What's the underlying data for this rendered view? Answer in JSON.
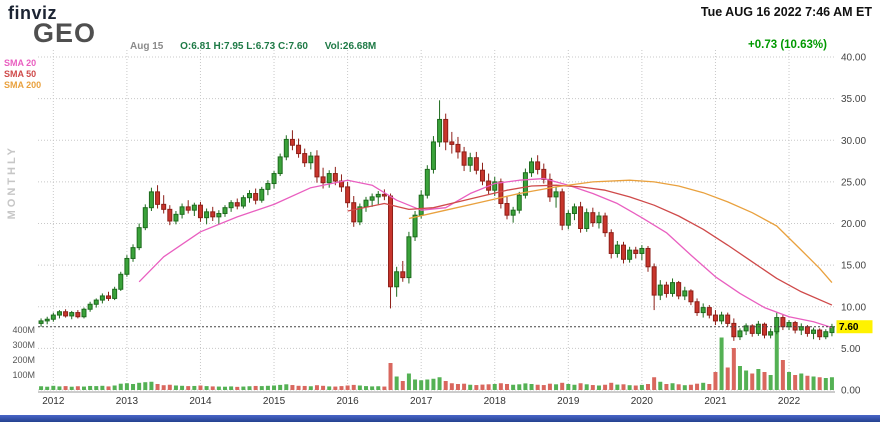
{
  "header": {
    "logo": "finviz",
    "datetime": "Tue AUG 16 2022 7:46 AM ET",
    "ticker": "GEO",
    "date_label": "Aug 15",
    "ohlc_line": "O:6.81  H:7.95  L:6.73  C:7.60",
    "volume_line": "Vol:26.68M",
    "change": "+0.73 (10.63%)"
  },
  "legend": {
    "sma20": "SMA 20",
    "sma50": "SMA 50",
    "sma200": "SMA 200"
  },
  "side_label": "MONTHLY",
  "colors": {
    "up": "#3aa23a",
    "up_border": "#1d6b1d",
    "down": "#c8352c",
    "down_border": "#8e1f18",
    "vol_up": "#54b154",
    "vol_down": "#d9675e",
    "sma20": "#e95fc0",
    "sma50": "#cf4a4a",
    "sma200": "#e9a13e",
    "grid": "#c8c8c8",
    "axis_text": "#444444",
    "change": "#009900",
    "quote": "#1e7a46",
    "label_bg": "#fff200",
    "label_text": "#000000"
  },
  "chart_data": {
    "type": "candlestick+volume",
    "title": "GEO monthly price chart",
    "timeframe": "monthly",
    "start": "2011-11",
    "ylim": [
      0,
      40
    ],
    "last_price": 7.6,
    "last_price_label": "7.60",
    "y_ticks": [
      [
        40,
        "40.00"
      ],
      [
        35,
        "35.00"
      ],
      [
        30,
        "30.00"
      ],
      [
        25,
        "25.00"
      ],
      [
        20,
        "20.00"
      ],
      [
        15,
        "15.00"
      ],
      [
        10,
        "10.00"
      ],
      [
        5,
        "5.00"
      ],
      [
        0,
        "0.00"
      ]
    ],
    "vol_ticks": [
      [
        400,
        "400M"
      ],
      [
        300,
        "300M"
      ],
      [
        200,
        "200M"
      ],
      [
        100,
        "100M"
      ]
    ],
    "year_ticks": [
      [
        2,
        "2012"
      ],
      [
        14,
        "2013"
      ],
      [
        26,
        "2014"
      ],
      [
        38,
        "2015"
      ],
      [
        50,
        "2016"
      ],
      [
        62,
        "2017"
      ],
      [
        74,
        "2018"
      ],
      [
        86,
        "2019"
      ],
      [
        98,
        "2020"
      ],
      [
        110,
        "2021"
      ],
      [
        122,
        "2022"
      ]
    ],
    "ohlcv": [
      [
        8.0,
        8.6,
        7.6,
        8.3,
        25
      ],
      [
        8.3,
        8.8,
        7.9,
        8.5,
        22
      ],
      [
        8.5,
        9.3,
        8.2,
        9.0,
        28
      ],
      [
        9.0,
        9.6,
        8.6,
        9.4,
        24
      ],
      [
        9.4,
        9.7,
        8.7,
        8.9,
        26
      ],
      [
        8.9,
        9.5,
        8.5,
        9.3,
        22
      ],
      [
        9.3,
        9.6,
        8.6,
        8.8,
        25
      ],
      [
        8.8,
        9.9,
        8.6,
        9.7,
        23
      ],
      [
        9.7,
        10.6,
        9.4,
        10.3,
        27
      ],
      [
        10.3,
        11.0,
        9.9,
        10.8,
        26
      ],
      [
        10.8,
        11.6,
        10.4,
        11.3,
        28
      ],
      [
        11.3,
        11.8,
        10.7,
        11.0,
        24
      ],
      [
        11.0,
        12.4,
        10.8,
        12.1,
        30
      ],
      [
        12.1,
        14.2,
        11.9,
        13.9,
        42
      ],
      [
        13.9,
        16.2,
        13.6,
        15.8,
        45
      ],
      [
        15.8,
        17.5,
        15.4,
        17.1,
        40
      ],
      [
        17.1,
        20.0,
        16.8,
        19.5,
        48
      ],
      [
        19.5,
        22.3,
        19.2,
        21.9,
        52
      ],
      [
        21.9,
        24.3,
        21.5,
        23.8,
        55
      ],
      [
        23.8,
        24.6,
        21.8,
        22.3,
        40
      ],
      [
        22.3,
        23.4,
        21.2,
        21.7,
        32
      ],
      [
        21.7,
        22.2,
        19.8,
        20.3,
        35
      ],
      [
        20.3,
        21.5,
        19.9,
        21.1,
        30
      ],
      [
        21.1,
        22.4,
        20.6,
        22.0,
        28
      ],
      [
        22.0,
        22.8,
        21.2,
        21.6,
        26
      ],
      [
        21.6,
        22.5,
        20.9,
        22.2,
        27
      ],
      [
        22.2,
        22.6,
        20.2,
        20.7,
        30
      ],
      [
        20.7,
        21.8,
        19.9,
        21.4,
        26
      ],
      [
        21.4,
        22.0,
        20.3,
        20.8,
        24
      ],
      [
        20.8,
        21.6,
        19.9,
        21.2,
        23
      ],
      [
        21.2,
        22.2,
        20.8,
        21.9,
        22
      ],
      [
        21.9,
        22.8,
        21.4,
        22.5,
        24
      ],
      [
        22.5,
        23.0,
        21.7,
        22.1,
        21
      ],
      [
        22.1,
        23.4,
        21.8,
        23.1,
        23
      ],
      [
        23.1,
        24.0,
        22.5,
        23.6,
        25
      ],
      [
        23.6,
        24.2,
        22.3,
        22.8,
        27
      ],
      [
        22.8,
        24.4,
        22.5,
        24.1,
        26
      ],
      [
        24.1,
        25.2,
        23.4,
        24.8,
        28
      ],
      [
        24.8,
        26.3,
        24.2,
        26.0,
        30
      ],
      [
        26.0,
        28.4,
        25.7,
        28.0,
        34
      ],
      [
        28.0,
        30.6,
        27.6,
        30.1,
        38
      ],
      [
        30.1,
        31.2,
        28.8,
        29.4,
        33
      ],
      [
        29.4,
        30.2,
        27.9,
        28.4,
        28
      ],
      [
        28.4,
        29.0,
        26.8,
        27.3,
        27
      ],
      [
        27.3,
        28.6,
        26.5,
        28.1,
        25
      ],
      [
        28.1,
        28.8,
        24.9,
        25.6,
        32
      ],
      [
        25.6,
        26.7,
        24.2,
        24.9,
        28
      ],
      [
        24.9,
        26.4,
        24.3,
        26.0,
        24
      ],
      [
        26.0,
        26.8,
        24.6,
        25.1,
        23
      ],
      [
        25.1,
        25.9,
        23.8,
        24.4,
        26
      ],
      [
        24.4,
        25.0,
        21.9,
        22.5,
        30
      ],
      [
        22.5,
        23.3,
        19.6,
        20.2,
        34
      ],
      [
        20.2,
        22.4,
        19.8,
        22.0,
        30
      ],
      [
        22.0,
        23.2,
        21.4,
        22.8,
        26
      ],
      [
        22.8,
        23.6,
        22.0,
        23.2,
        24
      ],
      [
        23.2,
        23.9,
        22.3,
        23.5,
        25
      ],
      [
        23.5,
        24.1,
        22.8,
        23.3,
        23
      ],
      [
        23.3,
        23.6,
        9.8,
        12.4,
        180
      ],
      [
        12.4,
        14.8,
        11.2,
        14.2,
        90
      ],
      [
        14.2,
        15.5,
        13.0,
        13.5,
        60
      ],
      [
        13.5,
        19.0,
        12.8,
        18.4,
        110
      ],
      [
        18.4,
        21.5,
        17.9,
        21.0,
        70
      ],
      [
        21.0,
        24.0,
        20.6,
        23.4,
        65
      ],
      [
        23.4,
        27.0,
        23.0,
        26.5,
        70
      ],
      [
        26.5,
        30.5,
        26.0,
        29.8,
        75
      ],
      [
        29.8,
        34.8,
        29.2,
        32.5,
        85
      ],
      [
        32.5,
        33.2,
        28.8,
        29.8,
        60
      ],
      [
        29.8,
        31.0,
        28.4,
        29.5,
        45
      ],
      [
        29.5,
        30.4,
        27.8,
        28.6,
        40
      ],
      [
        28.6,
        29.2,
        26.3,
        27.0,
        42
      ],
      [
        27.0,
        28.5,
        26.2,
        27.9,
        35
      ],
      [
        27.9,
        28.6,
        25.9,
        26.4,
        33
      ],
      [
        26.4,
        27.3,
        24.6,
        25.1,
        36
      ],
      [
        25.1,
        26.0,
        23.5,
        24.0,
        38
      ],
      [
        24.0,
        25.6,
        23.3,
        25.0,
        40
      ],
      [
        25.0,
        25.4,
        21.8,
        22.4,
        45
      ],
      [
        22.4,
        23.2,
        20.5,
        21.0,
        40
      ],
      [
        21.0,
        22.0,
        20.1,
        21.6,
        35
      ],
      [
        21.6,
        23.8,
        21.2,
        23.4,
        38
      ],
      [
        23.4,
        26.6,
        23.0,
        26.1,
        44
      ],
      [
        26.1,
        27.9,
        25.6,
        27.4,
        40
      ],
      [
        27.4,
        28.2,
        25.9,
        26.5,
        35
      ],
      [
        26.5,
        27.2,
        24.8,
        25.3,
        33
      ],
      [
        25.3,
        26.0,
        22.6,
        23.2,
        42
      ],
      [
        23.2,
        24.4,
        21.9,
        23.8,
        38
      ],
      [
        23.8,
        24.2,
        19.2,
        19.8,
        48
      ],
      [
        19.8,
        21.6,
        19.3,
        21.2,
        40
      ],
      [
        21.2,
        22.4,
        20.4,
        22.0,
        35
      ],
      [
        22.0,
        22.6,
        18.9,
        19.4,
        45
      ],
      [
        19.4,
        21.8,
        19.0,
        21.3,
        38
      ],
      [
        21.3,
        21.9,
        19.6,
        20.1,
        33
      ],
      [
        20.1,
        21.4,
        19.4,
        20.9,
        30
      ],
      [
        20.9,
        21.3,
        18.4,
        18.9,
        35
      ],
      [
        18.9,
        19.3,
        15.8,
        16.4,
        48
      ],
      [
        16.4,
        17.9,
        15.9,
        17.4,
        36
      ],
      [
        17.4,
        17.8,
        15.2,
        15.7,
        38
      ],
      [
        15.7,
        17.2,
        15.3,
        16.8,
        32
      ],
      [
        16.8,
        17.2,
        15.8,
        16.4,
        30
      ],
      [
        16.4,
        17.4,
        15.6,
        17.0,
        34
      ],
      [
        17.0,
        17.3,
        14.2,
        14.8,
        40
      ],
      [
        14.8,
        15.2,
        9.6,
        11.4,
        85
      ],
      [
        11.4,
        13.2,
        10.8,
        12.6,
        55
      ],
      [
        12.6,
        13.0,
        11.1,
        11.6,
        40
      ],
      [
        11.6,
        13.4,
        11.2,
        12.9,
        45
      ],
      [
        12.9,
        13.1,
        10.9,
        11.3,
        38
      ],
      [
        11.3,
        12.4,
        10.8,
        11.9,
        32
      ],
      [
        11.9,
        12.1,
        10.2,
        10.6,
        35
      ],
      [
        10.6,
        11.0,
        8.9,
        9.3,
        42
      ],
      [
        9.3,
        10.4,
        8.7,
        9.9,
        48
      ],
      [
        9.9,
        10.2,
        8.6,
        9.0,
        40
      ],
      [
        9.0,
        9.6,
        7.8,
        8.3,
        120
      ],
      [
        8.3,
        9.4,
        7.9,
        9.0,
        350
      ],
      [
        9.0,
        9.3,
        7.6,
        8.0,
        150
      ],
      [
        8.0,
        8.6,
        5.9,
        6.4,
        280
      ],
      [
        6.4,
        7.4,
        6.0,
        7.1,
        160
      ],
      [
        7.1,
        8.0,
        6.6,
        7.7,
        130
      ],
      [
        7.7,
        7.9,
        6.4,
        6.8,
        110
      ],
      [
        6.8,
        8.3,
        6.5,
        7.9,
        140
      ],
      [
        7.9,
        8.1,
        6.2,
        6.6,
        120
      ],
      [
        6.6,
        7.4,
        6.2,
        7.0,
        100
      ],
      [
        7.0,
        9.3,
        6.7,
        8.7,
        400
      ],
      [
        8.7,
        9.0,
        7.2,
        7.6,
        200
      ],
      [
        7.6,
        8.4,
        7.2,
        8.1,
        120
      ],
      [
        8.1,
        8.3,
        6.8,
        7.2,
        100
      ],
      [
        7.2,
        8.0,
        6.6,
        7.6,
        110
      ],
      [
        7.6,
        7.8,
        6.4,
        6.8,
        95
      ],
      [
        6.8,
        7.5,
        6.1,
        7.2,
        90
      ],
      [
        7.2,
        7.4,
        6.0,
        6.4,
        85
      ],
      [
        6.4,
        7.3,
        6.1,
        7.0,
        80
      ],
      [
        6.9,
        7.95,
        6.45,
        7.6,
        85
      ]
    ],
    "sma20_points": [
      [
        16,
        13.0
      ],
      [
        20,
        16.0
      ],
      [
        26,
        19.0
      ],
      [
        32,
        20.8
      ],
      [
        38,
        22.3
      ],
      [
        44,
        24.3
      ],
      [
        50,
        25.2
      ],
      [
        54,
        24.6
      ],
      [
        58,
        22.8
      ],
      [
        62,
        21.6
      ],
      [
        66,
        21.9
      ],
      [
        70,
        23.6
      ],
      [
        74,
        24.8
      ],
      [
        78,
        25.2
      ],
      [
        82,
        25.4
      ],
      [
        86,
        24.6
      ],
      [
        90,
        23.6
      ],
      [
        94,
        22.4
      ],
      [
        98,
        20.7
      ],
      [
        102,
        18.9
      ],
      [
        106,
        16.2
      ],
      [
        110,
        13.6
      ],
      [
        114,
        11.6
      ],
      [
        118,
        9.9
      ],
      [
        122,
        8.8
      ],
      [
        126,
        8.2
      ],
      [
        129,
        7.5
      ]
    ],
    "sma50_points": [
      [
        50,
        21.5
      ],
      [
        56,
        22.4
      ],
      [
        60,
        21.7
      ],
      [
        64,
        21.9
      ],
      [
        68,
        22.6
      ],
      [
        72,
        23.3
      ],
      [
        76,
        24.0
      ],
      [
        80,
        24.5
      ],
      [
        84,
        24.6
      ],
      [
        88,
        24.4
      ],
      [
        92,
        24.0
      ],
      [
        96,
        23.2
      ],
      [
        100,
        22.2
      ],
      [
        104,
        20.9
      ],
      [
        108,
        19.3
      ],
      [
        112,
        17.4
      ],
      [
        116,
        15.4
      ],
      [
        120,
        13.4
      ],
      [
        124,
        11.8
      ],
      [
        129,
        10.2
      ]
    ],
    "sma200_points": [
      [
        60,
        20.6
      ],
      [
        66,
        21.6
      ],
      [
        72,
        22.6
      ],
      [
        78,
        23.6
      ],
      [
        84,
        24.4
      ],
      [
        90,
        25.0
      ],
      [
        96,
        25.2
      ],
      [
        100,
        25.0
      ],
      [
        104,
        24.5
      ],
      [
        108,
        23.7
      ],
      [
        112,
        22.6
      ],
      [
        116,
        21.3
      ],
      [
        120,
        19.7
      ],
      [
        124,
        16.8
      ],
      [
        127,
        14.6
      ],
      [
        129,
        12.9
      ]
    ]
  }
}
